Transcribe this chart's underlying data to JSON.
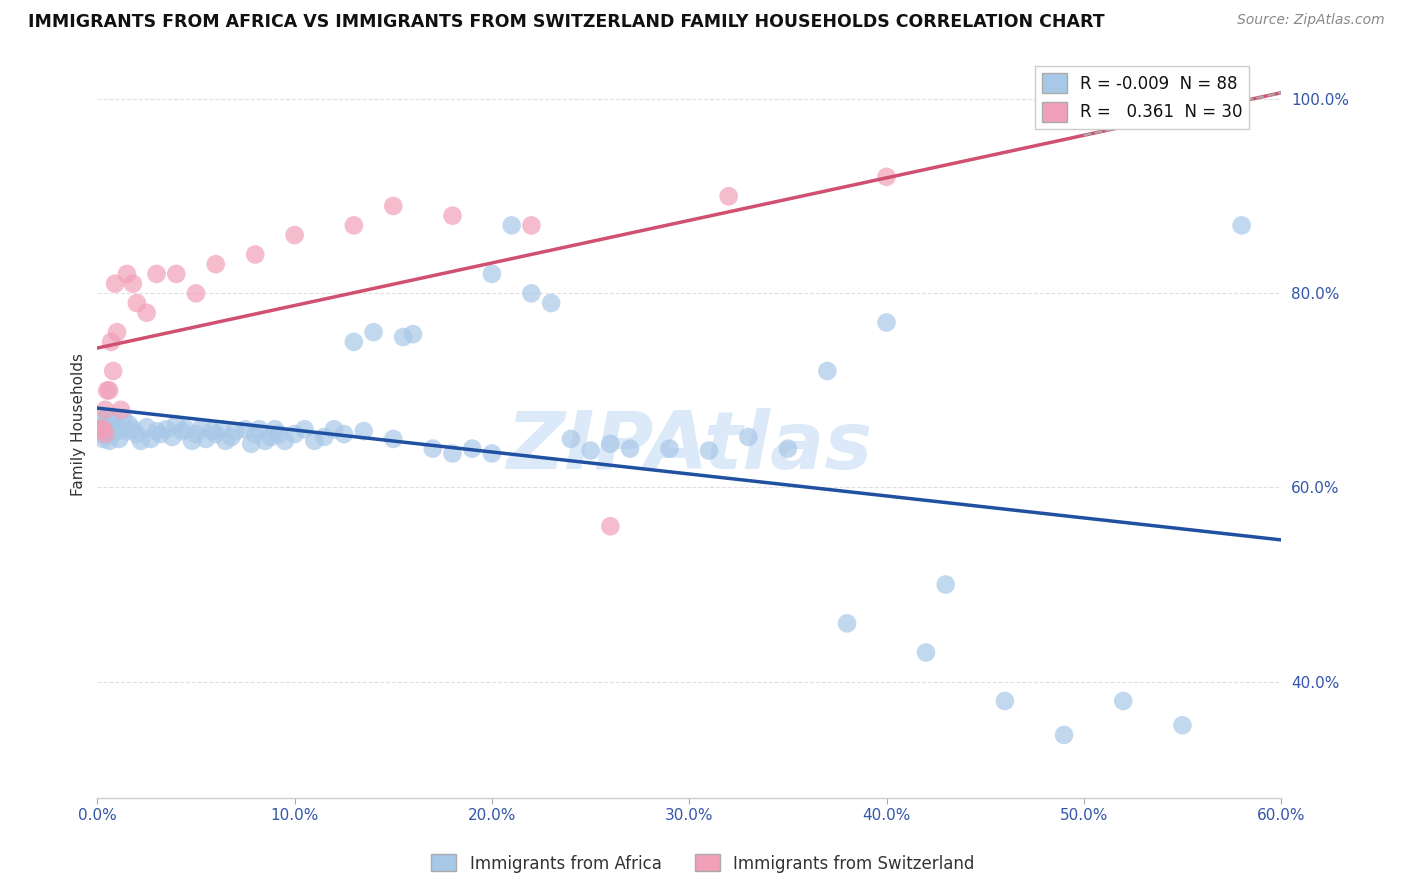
{
  "title": "IMMIGRANTS FROM AFRICA VS IMMIGRANTS FROM SWITZERLAND FAMILY HOUSEHOLDS CORRELATION CHART",
  "source_text": "Source: ZipAtlas.com",
  "ylabel": "Family Households",
  "legend_label_1": "Immigrants from Africa",
  "legend_label_2": "Immigrants from Switzerland",
  "R1": -0.009,
  "N1": 88,
  "R2": 0.361,
  "N2": 30,
  "color1": "#a8c8e8",
  "color2": "#f0a0b8",
  "line_color1": "#2050a0",
  "line_color2": "#d05070",
  "watermark": "ZIPAtlas",
  "xlim": [
    0.0,
    0.6
  ],
  "ylim": [
    0.28,
    1.05
  ],
  "x_ticks": [
    0.0,
    0.1,
    0.2,
    0.3,
    0.4,
    0.5,
    0.6
  ],
  "y_ticks": [
    0.4,
    0.6,
    0.8,
    1.0
  ],
  "africa_x": [
    0.001,
    0.002,
    0.002,
    0.003,
    0.003,
    0.004,
    0.005,
    0.005,
    0.006,
    0.006,
    0.007,
    0.008,
    0.009,
    0.01,
    0.011,
    0.012,
    0.013,
    0.015,
    0.016,
    0.018,
    0.02,
    0.022,
    0.025,
    0.027,
    0.03,
    0.032,
    0.035,
    0.038,
    0.04,
    0.043,
    0.045,
    0.048,
    0.05,
    0.053,
    0.055,
    0.058,
    0.06,
    0.063,
    0.065,
    0.068,
    0.07,
    0.075,
    0.078,
    0.08,
    0.082,
    0.085,
    0.088,
    0.09,
    0.092,
    0.095,
    0.1,
    0.105,
    0.11,
    0.115,
    0.12,
    0.125,
    0.13,
    0.135,
    0.14,
    0.15,
    0.155,
    0.16,
    0.17,
    0.18,
    0.19,
    0.2,
    0.21,
    0.22,
    0.23,
    0.24,
    0.25,
    0.26,
    0.27,
    0.29,
    0.31,
    0.33,
    0.35,
    0.37,
    0.4,
    0.43,
    0.46,
    0.49,
    0.52,
    0.55,
    0.58,
    0.2,
    0.38,
    0.42
  ],
  "africa_y": [
    0.66,
    0.67,
    0.655,
    0.66,
    0.65,
    0.665,
    0.658,
    0.672,
    0.66,
    0.648,
    0.655,
    0.668,
    0.662,
    0.658,
    0.65,
    0.66,
    0.672,
    0.658,
    0.665,
    0.66,
    0.655,
    0.648,
    0.662,
    0.65,
    0.658,
    0.655,
    0.66,
    0.652,
    0.665,
    0.658,
    0.66,
    0.648,
    0.655,
    0.662,
    0.65,
    0.658,
    0.655,
    0.66,
    0.648,
    0.652,
    0.658,
    0.66,
    0.645,
    0.655,
    0.66,
    0.648,
    0.652,
    0.66,
    0.655,
    0.648,
    0.655,
    0.66,
    0.648,
    0.652,
    0.66,
    0.655,
    0.75,
    0.658,
    0.76,
    0.65,
    0.755,
    0.758,
    0.64,
    0.635,
    0.64,
    0.82,
    0.87,
    0.8,
    0.79,
    0.65,
    0.638,
    0.645,
    0.64,
    0.64,
    0.638,
    0.652,
    0.64,
    0.72,
    0.77,
    0.5,
    0.38,
    0.345,
    0.38,
    0.355,
    0.87,
    0.635,
    0.46,
    0.43
  ],
  "swiss_x": [
    0.001,
    0.002,
    0.003,
    0.004,
    0.004,
    0.005,
    0.006,
    0.007,
    0.008,
    0.009,
    0.01,
    0.012,
    0.015,
    0.018,
    0.02,
    0.025,
    0.03,
    0.04,
    0.05,
    0.06,
    0.08,
    0.1,
    0.13,
    0.15,
    0.18,
    0.22,
    0.26,
    0.32,
    0.4,
    0.49
  ],
  "swiss_y": [
    0.66,
    0.66,
    0.66,
    0.655,
    0.68,
    0.7,
    0.7,
    0.75,
    0.72,
    0.81,
    0.76,
    0.68,
    0.82,
    0.81,
    0.79,
    0.78,
    0.82,
    0.82,
    0.8,
    0.83,
    0.84,
    0.86,
    0.87,
    0.89,
    0.88,
    0.87,
    0.56,
    0.9,
    0.92,
    0.98
  ]
}
